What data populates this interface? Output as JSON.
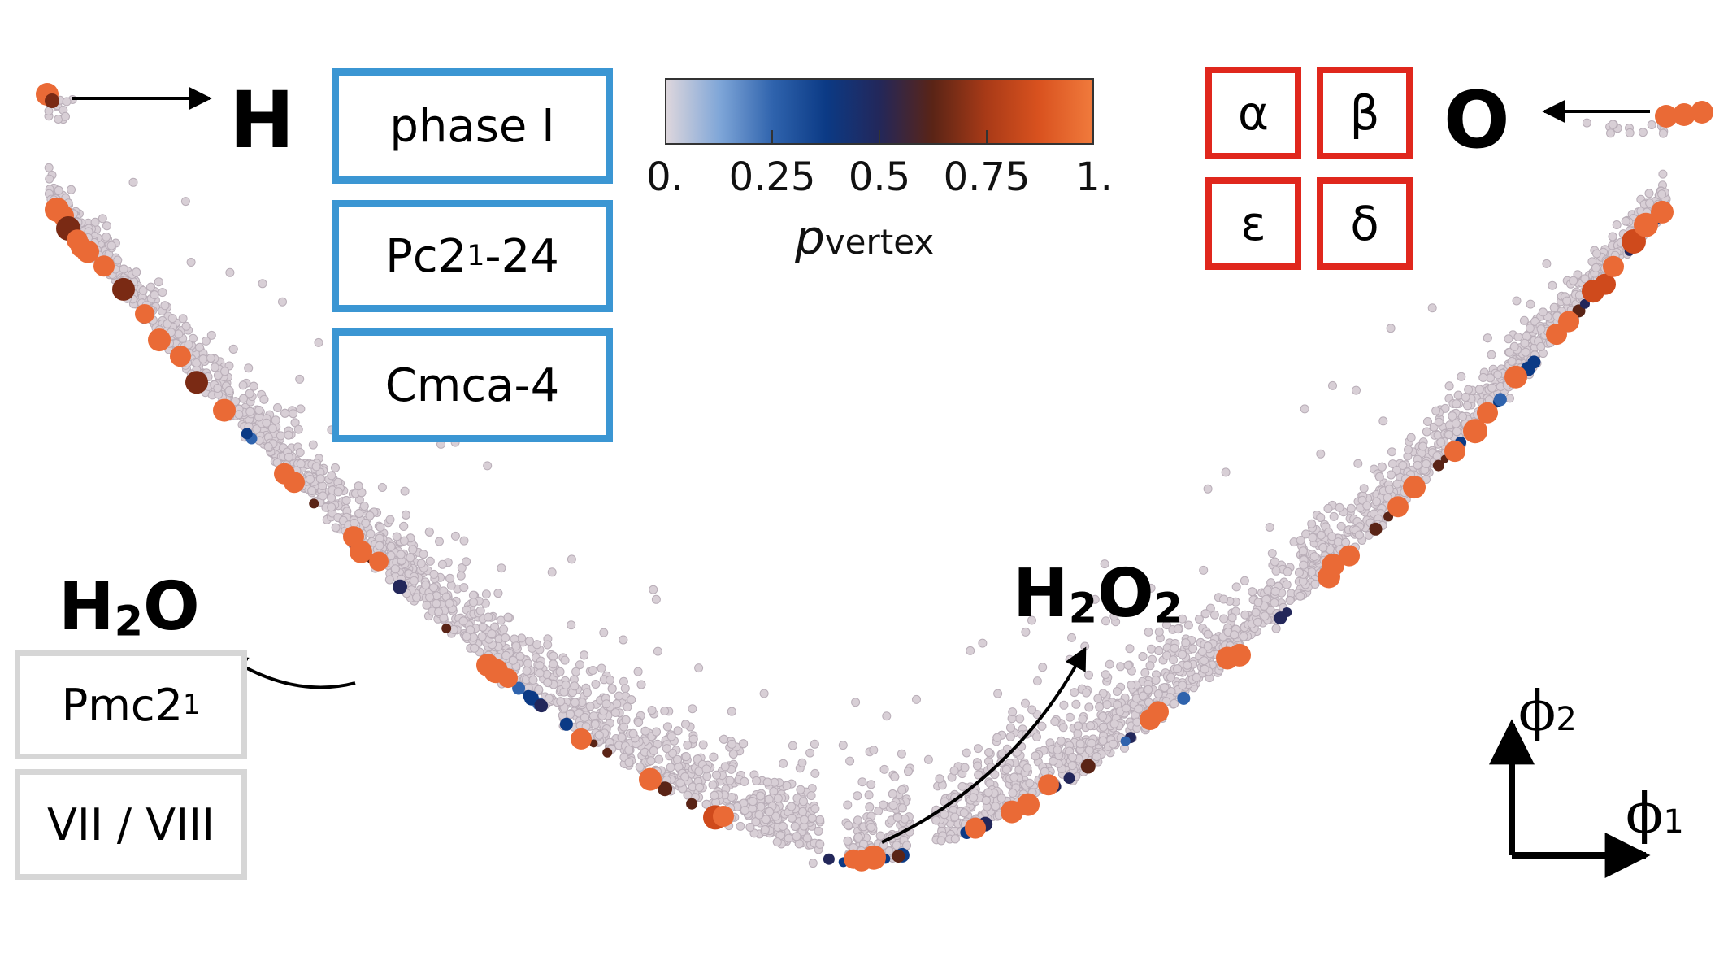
{
  "chart_data": {
    "type": "scatter",
    "title": "",
    "xlabel": "ϕ1",
    "ylabel": "ϕ2",
    "axis_x_symbol": "ϕ",
    "axis_x_index": "1",
    "axis_y_symbol": "ϕ",
    "axis_y_index": "2",
    "grid": false,
    "colorbar": {
      "title_main": "p",
      "title_sub": "vertex",
      "ticks": [
        "0.",
        "0.25",
        "0.5",
        "0.75",
        "1."
      ],
      "tick_values": [
        0,
        0.25,
        0.5,
        0.75,
        1
      ],
      "range": [
        0,
        1
      ],
      "colormap": [
        "#ddd6dc",
        "#7fa6d8",
        "#2f63ad",
        "#0b3a85",
        "#23275a",
        "#5a2416",
        "#a83a17",
        "#d9521f",
        "#f07a3c"
      ]
    },
    "series": [
      {
        "name": "",
        "note_marker": "small points, p_vertex near 0",
        "color": "#d8cfd6"
      },
      {
        "name": "",
        "note_marker": "large points, p_vertex near 1",
        "color": "#ea6a36"
      }
    ],
    "annotations": {
      "left_end_label": "H",
      "right_end_label": "O",
      "h2o_label": {
        "main": "H",
        "sub": "2",
        "tail": "O"
      },
      "h2o2_label": {
        "a": "H",
        "sub1": "2",
        "b": "O",
        "sub2": "2"
      },
      "h_phases": [
        {
          "main": "phase I",
          "sub": "",
          "tail": ""
        },
        {
          "main": "Pc2",
          "sub": "1",
          "tail": "-24"
        },
        {
          "main": "Cmca-4",
          "sub": "",
          "tail": ""
        }
      ],
      "o_phases": [
        "α",
        "β",
        "ε",
        "δ"
      ],
      "h2o_phases": [
        {
          "main": "Pmc2",
          "sub": "1",
          "tail": ""
        },
        {
          "main": "VII / VIII",
          "sub": "",
          "tail": ""
        }
      ]
    }
  }
}
